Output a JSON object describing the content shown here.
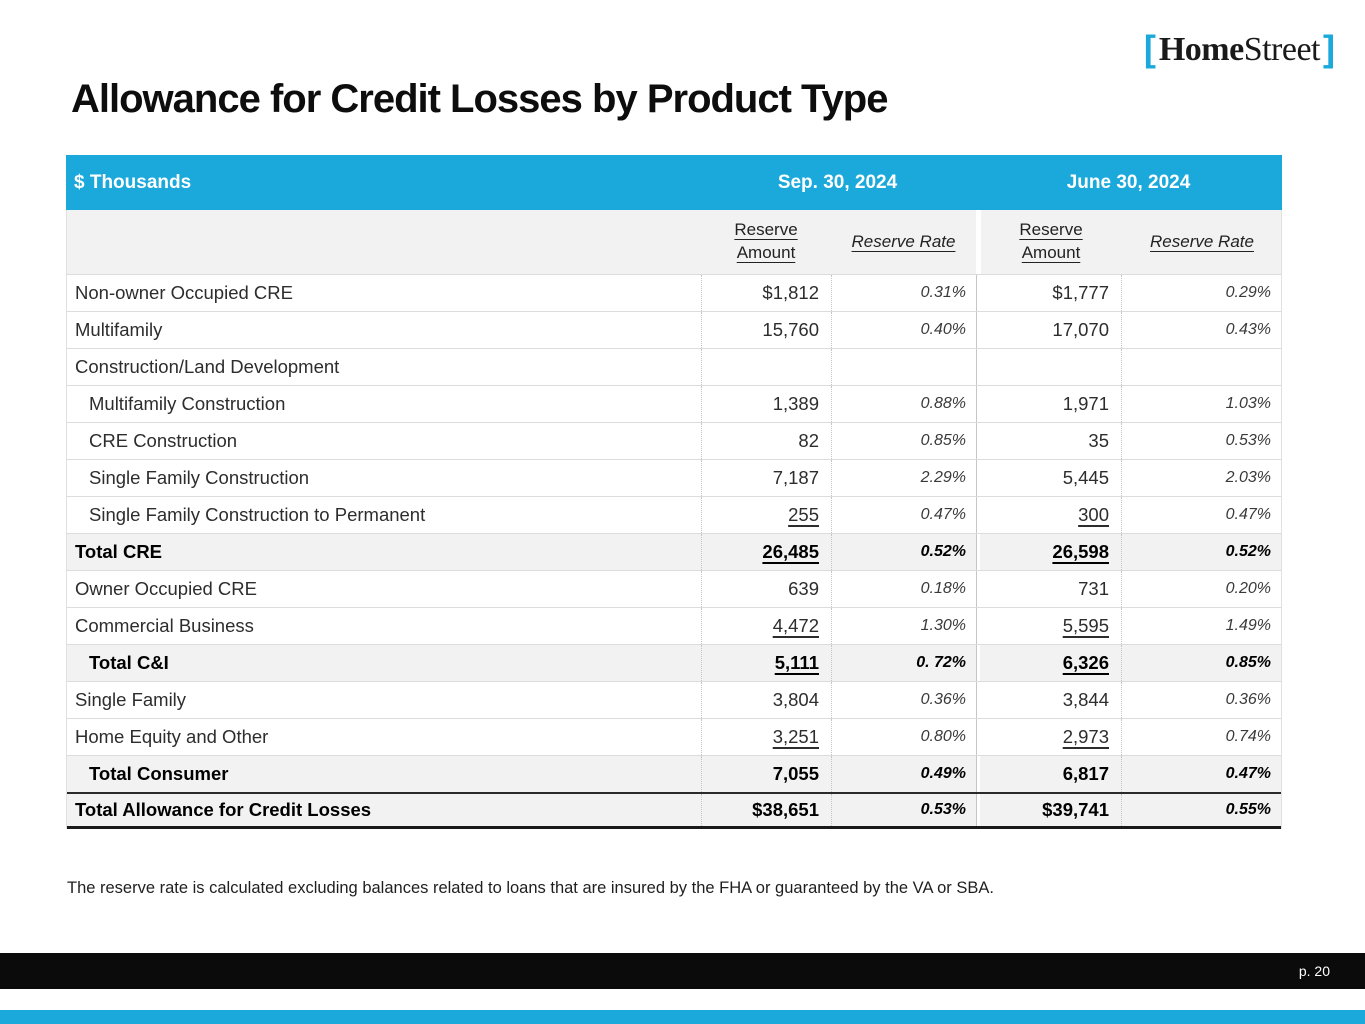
{
  "logo": {
    "bracket_left": "[",
    "name_bold": "Home",
    "name_regular": "Street",
    "bracket_right": "]"
  },
  "title": "Allowance for Credit Losses by Product Type",
  "colors": {
    "accent_cyan": "#1BA9DB",
    "shaded_row": "#F2F2F2",
    "footer_bar": "#0B0B0B"
  },
  "table": {
    "units_label": "$ Thousands",
    "period_headers": [
      "Sep. 30, 2024",
      "June 30, 2024"
    ],
    "subheaders": {
      "amount": "Reserve Amount",
      "rate": "Reserve Rate"
    },
    "rows": [
      {
        "label": "Non-owner Occupied CRE",
        "cells": [
          {
            "v": "$1,812"
          },
          {
            "v": "0.31%"
          },
          {
            "v": "$1,777"
          },
          {
            "v": "0.29%"
          }
        ]
      },
      {
        "label": "Multifamily",
        "cells": [
          {
            "v": "15,760"
          },
          {
            "v": "0.40%"
          },
          {
            "v": "17,070"
          },
          {
            "v": "0.43%"
          }
        ]
      },
      {
        "label": "Construction/Land Development",
        "cells": [
          {
            "v": ""
          },
          {
            "v": ""
          },
          {
            "v": ""
          },
          {
            "v": ""
          }
        ]
      },
      {
        "label": "Multifamily Construction",
        "indent": true,
        "cells": [
          {
            "v": "1,389"
          },
          {
            "v": "0.88%"
          },
          {
            "v": "1,971"
          },
          {
            "v": "1.03%"
          }
        ]
      },
      {
        "label": "CRE Construction",
        "indent": true,
        "cells": [
          {
            "v": "82"
          },
          {
            "v": "0.85%"
          },
          {
            "v": "35"
          },
          {
            "v": "0.53%"
          }
        ]
      },
      {
        "label": "Single Family Construction",
        "indent": true,
        "cells": [
          {
            "v": "7,187"
          },
          {
            "v": "2.29%"
          },
          {
            "v": "5,445"
          },
          {
            "v": "2.03%"
          }
        ]
      },
      {
        "label": "Single Family Construction to Permanent",
        "indent": true,
        "cells": [
          {
            "v": "255",
            "u": true
          },
          {
            "v": "0.47%"
          },
          {
            "v": "300",
            "u": true
          },
          {
            "v": "0.47%"
          }
        ]
      },
      {
        "label": "Total CRE",
        "bold": true,
        "shaded": true,
        "cells": [
          {
            "v": "26,485",
            "u": true
          },
          {
            "v": "0.52%"
          },
          {
            "v": "26,598",
            "u": true
          },
          {
            "v": "0.52%"
          }
        ]
      },
      {
        "label": "Owner Occupied CRE",
        "cells": [
          {
            "v": "639"
          },
          {
            "v": "0.18%"
          },
          {
            "v": "731"
          },
          {
            "v": "0.20%"
          }
        ]
      },
      {
        "label": "Commercial Business",
        "cells": [
          {
            "v": "4,472",
            "u": true
          },
          {
            "v": "1.30%"
          },
          {
            "v": "5,595",
            "u": true
          },
          {
            "v": "1.49%"
          }
        ]
      },
      {
        "label": "Total C&I",
        "indent": true,
        "bold": true,
        "shaded": true,
        "cells": [
          {
            "v": "5,111",
            "u": true
          },
          {
            "v": "0. 72%"
          },
          {
            "v": "6,326",
            "u": true
          },
          {
            "v": "0.85%"
          }
        ]
      },
      {
        "label": "Single Family",
        "cells": [
          {
            "v": "3,804"
          },
          {
            "v": "0.36%"
          },
          {
            "v": "3,844"
          },
          {
            "v": "0.36%"
          }
        ]
      },
      {
        "label": "Home Equity and Other",
        "cells": [
          {
            "v": "3,251",
            "u": true
          },
          {
            "v": "0.80%"
          },
          {
            "v": "2,973",
            "u": true
          },
          {
            "v": "0.74%"
          }
        ]
      },
      {
        "label": "Total Consumer",
        "indent": true,
        "bold": true,
        "shaded": true,
        "cells": [
          {
            "v": "7,055"
          },
          {
            "v": "0.49%"
          },
          {
            "v": "6,817"
          },
          {
            "v": "0.47%"
          }
        ]
      },
      {
        "label": "Total Allowance for Credit Losses",
        "bold": true,
        "shaded": true,
        "grand": true,
        "cells": [
          {
            "v": "$38,651"
          },
          {
            "v": "0.53%"
          },
          {
            "v": "$39,741"
          },
          {
            "v": "0.55%"
          }
        ]
      }
    ]
  },
  "footnote": "The reserve rate is calculated excluding balances related to loans that are insured by the FHA or guaranteed by the VA or SBA.",
  "footer": {
    "page_label": "p. 20"
  }
}
